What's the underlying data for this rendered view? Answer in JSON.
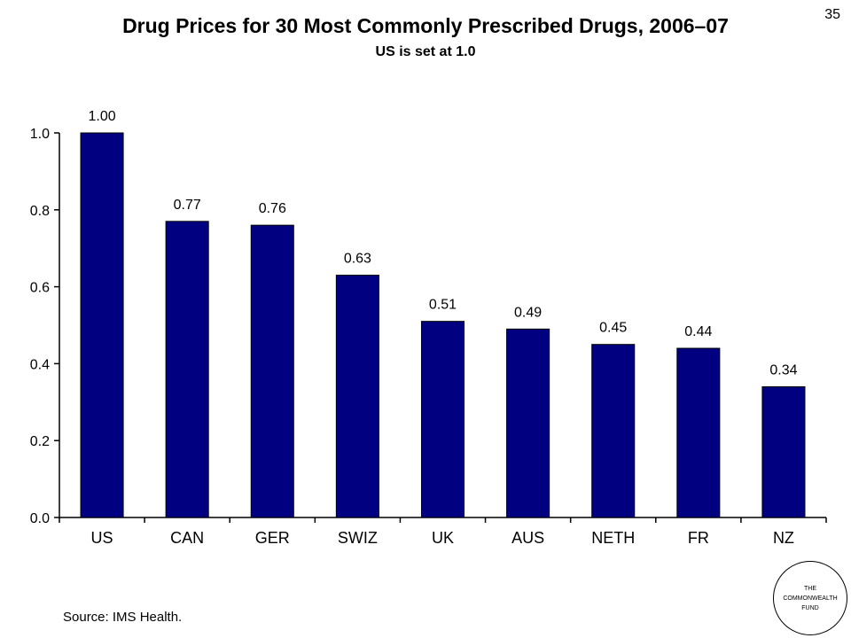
{
  "page_number": "35",
  "source": "Source: IMS Health.",
  "logo_text": "THE\nCOMMONWEALTH\nFUND",
  "colors": {
    "bar": "#000080",
    "axis": "#000000"
  },
  "chart_data": {
    "type": "bar",
    "title": "Drug Prices for 30 Most Commonly Prescribed Drugs, 2006–07",
    "subtitle": "US is set at 1.0",
    "categories": [
      "US",
      "CAN",
      "GER",
      "SWIZ",
      "UK",
      "AUS",
      "NETH",
      "FR",
      "NZ"
    ],
    "values": [
      1.0,
      0.77,
      0.76,
      0.63,
      0.51,
      0.49,
      0.45,
      0.44,
      0.34
    ],
    "data_labels": [
      "1.00",
      "0.77",
      "0.76",
      "0.63",
      "0.51",
      "0.49",
      "0.45",
      "0.44",
      "0.34"
    ],
    "yticks": [
      "0.0",
      "0.2",
      "0.4",
      "0.6",
      "0.8",
      "1.0"
    ],
    "ylim": [
      0,
      1.0
    ],
    "xlabel": "",
    "ylabel": "",
    "grid": false,
    "legend": "none"
  }
}
